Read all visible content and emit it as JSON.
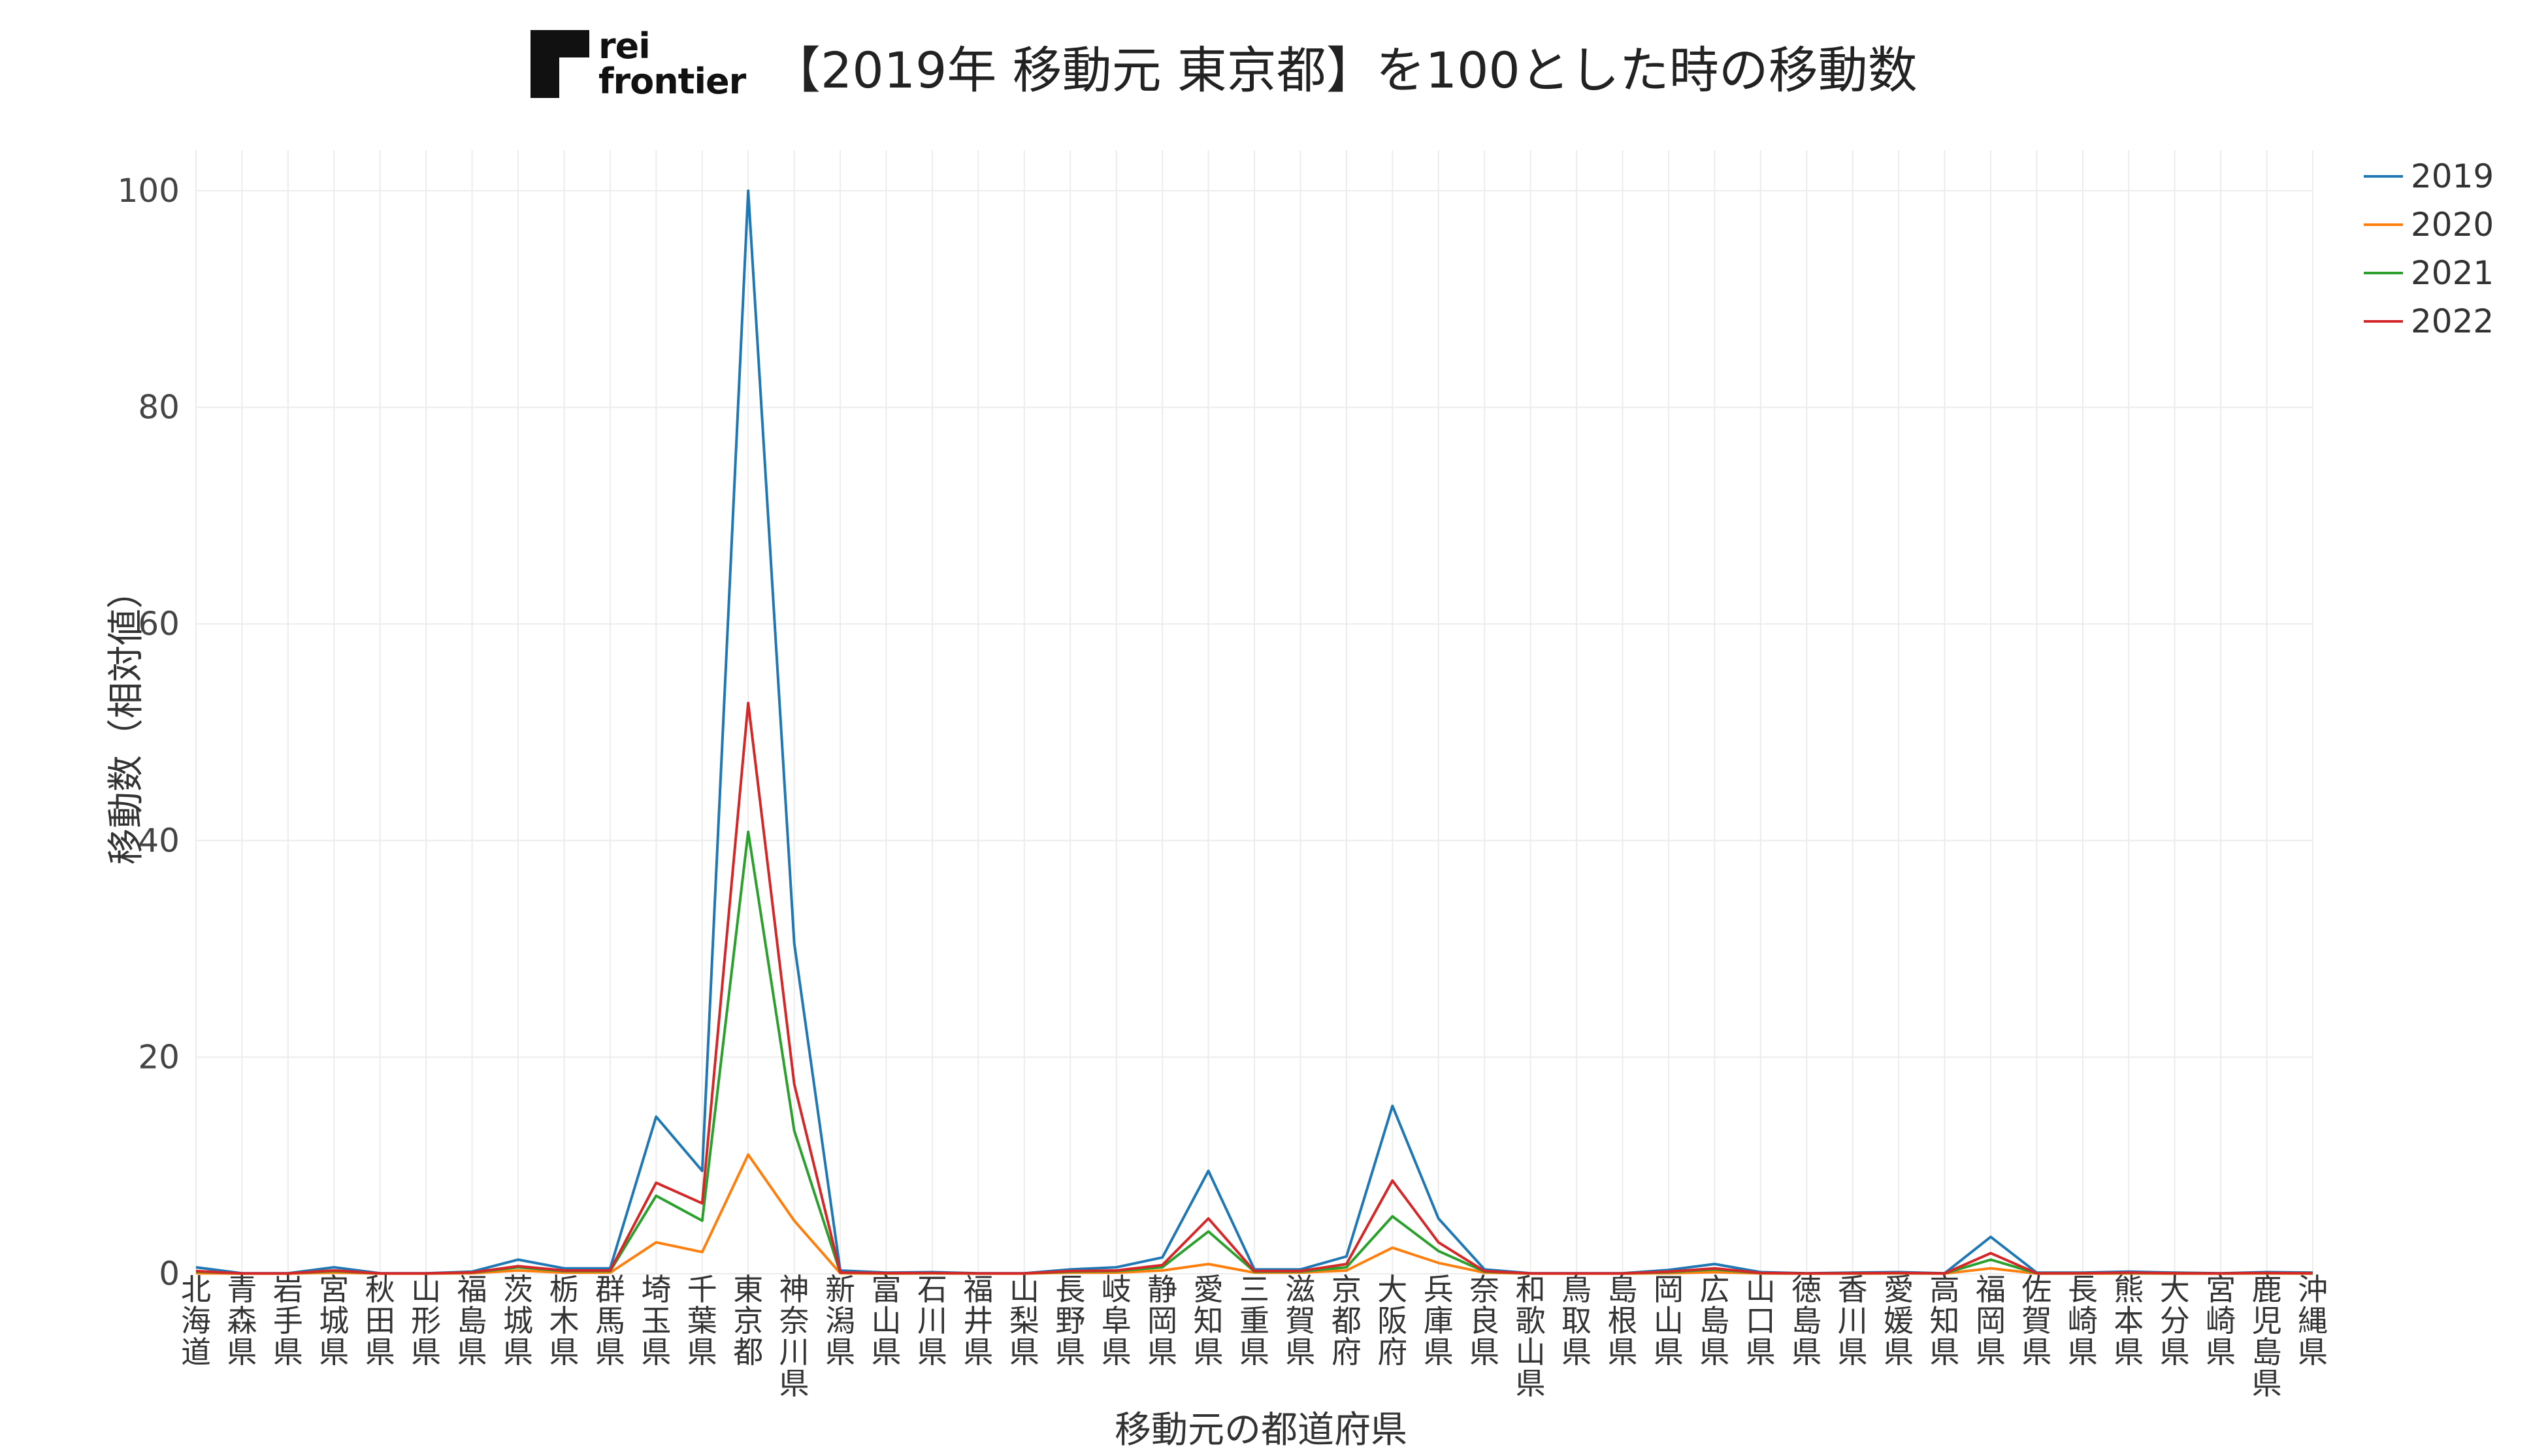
{
  "logo": {
    "line1": "rei",
    "line2": "frontier"
  },
  "title": "【2019年 移動元 東京都】を100とした時の移動数",
  "chart_data": {
    "type": "line",
    "title": "【2019年 移動元 東京都】を100とした時の移動数",
    "xlabel": "移動元の都道府県",
    "ylabel": "移動数（相対値）",
    "ylim": [
      0,
      100
    ],
    "yticks": [
      0,
      20,
      40,
      60,
      80,
      100
    ],
    "grid": true,
    "legend_position": "top-right",
    "categories": [
      "北海道",
      "青森県",
      "岩手県",
      "宮城県",
      "秋田県",
      "山形県",
      "福島県",
      "茨城県",
      "栃木県",
      "群馬県",
      "埼玉県",
      "千葉県",
      "東京都",
      "神奈川県",
      "新潟県",
      "富山県",
      "石川県",
      "福井県",
      "山梨県",
      "長野県",
      "岐阜県",
      "静岡県",
      "愛知県",
      "三重県",
      "滋賀県",
      "京都府",
      "大阪府",
      "兵庫県",
      "奈良県",
      "和歌山県",
      "鳥取県",
      "島根県",
      "岡山県",
      "広島県",
      "山口県",
      "徳島県",
      "香川県",
      "愛媛県",
      "高知県",
      "福岡県",
      "佐賀県",
      "長崎県",
      "熊本県",
      "大分県",
      "宮崎県",
      "鹿児島県",
      "沖縄県"
    ],
    "series": [
      {
        "name": "2019",
        "color": "#1f77b4",
        "values": [
          0.6,
          0.05,
          0.05,
          0.6,
          0.05,
          0.05,
          0.2,
          1.3,
          0.5,
          0.5,
          14.5,
          9.5,
          100,
          30.5,
          0.3,
          0.1,
          0.15,
          0.05,
          0.05,
          0.4,
          0.6,
          1.5,
          9.5,
          0.4,
          0.4,
          1.6,
          15.5,
          5.1,
          0.4,
          0.05,
          0.05,
          0.05,
          0.35,
          0.9,
          0.15,
          0.05,
          0.1,
          0.15,
          0.05,
          3.4,
          0.1,
          0.1,
          0.2,
          0.1,
          0.05,
          0.15,
          0.1
        ]
      },
      {
        "name": "2020",
        "color": "#ff7f0e",
        "values": [
          0.05,
          0.02,
          0.02,
          0.1,
          0.02,
          0.02,
          0.05,
          0.3,
          0.1,
          0.1,
          2.9,
          2.0,
          11.0,
          4.9,
          0.05,
          0.02,
          0.03,
          0.02,
          0.02,
          0.1,
          0.1,
          0.3,
          0.9,
          0.1,
          0.1,
          0.3,
          2.4,
          1.0,
          0.1,
          0.02,
          0.02,
          0.02,
          0.05,
          0.15,
          0.03,
          0.02,
          0.02,
          0.03,
          0.02,
          0.5,
          0.02,
          0.02,
          0.03,
          0.02,
          0.02,
          0.03,
          0.02
        ]
      },
      {
        "name": "2021",
        "color": "#2ca02c",
        "values": [
          0.2,
          0.03,
          0.03,
          0.25,
          0.03,
          0.03,
          0.1,
          0.6,
          0.25,
          0.25,
          7.2,
          4.9,
          40.8,
          13.2,
          0.1,
          0.05,
          0.06,
          0.03,
          0.03,
          0.2,
          0.25,
          0.6,
          3.9,
          0.2,
          0.2,
          0.6,
          5.3,
          2.1,
          0.2,
          0.03,
          0.03,
          0.03,
          0.15,
          0.4,
          0.06,
          0.03,
          0.04,
          0.06,
          0.03,
          1.3,
          0.04,
          0.04,
          0.08,
          0.04,
          0.03,
          0.06,
          0.04
        ]
      },
      {
        "name": "2022",
        "color": "#d62728",
        "values": [
          0.25,
          0.03,
          0.03,
          0.3,
          0.03,
          0.03,
          0.12,
          0.7,
          0.3,
          0.3,
          8.4,
          6.5,
          52.7,
          17.5,
          0.12,
          0.06,
          0.08,
          0.03,
          0.03,
          0.25,
          0.3,
          0.8,
          5.1,
          0.25,
          0.25,
          0.9,
          8.6,
          2.9,
          0.25,
          0.03,
          0.03,
          0.03,
          0.2,
          0.5,
          0.08,
          0.03,
          0.05,
          0.08,
          0.03,
          1.9,
          0.05,
          0.05,
          0.1,
          0.05,
          0.03,
          0.08,
          0.05
        ]
      }
    ]
  }
}
